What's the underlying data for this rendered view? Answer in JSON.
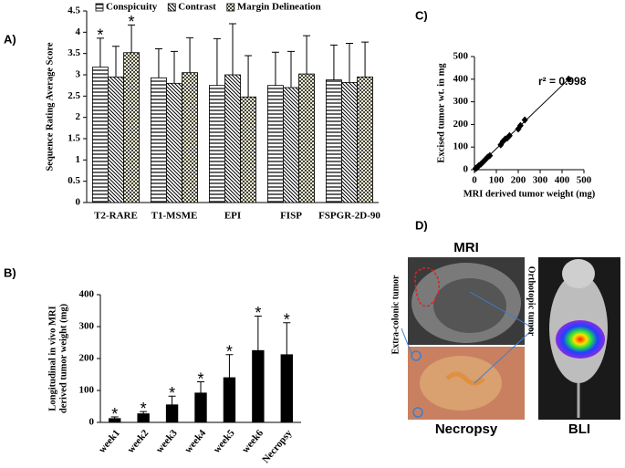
{
  "panel_labels": [
    "A)",
    "B)",
    "C)",
    "D)"
  ],
  "chart_data": [
    {
      "type": "bar",
      "ylabel": "Sequence Rating Average Score",
      "categories": [
        "T2-RARE",
        "T1-MSME",
        "EPI",
        "FISP",
        "FSPGR-2D-90"
      ],
      "ylim": [
        0,
        4.5
      ],
      "yticks": [
        0,
        0.5,
        1,
        1.5,
        2,
        2.5,
        3,
        3.5,
        4,
        4.5
      ],
      "series": [
        {
          "name": "Conspicuity",
          "color": "#000000",
          "pattern": "horizontal",
          "values": [
            3.18,
            2.93,
            2.75,
            2.75,
            2.88
          ],
          "errors": [
            0.68,
            0.68,
            1.1,
            0.78,
            0.82
          ],
          "markers": [
            "*",
            null,
            null,
            null,
            null
          ]
        },
        {
          "name": "Contrast",
          "color": "#000000",
          "pattern": "diagonal",
          "values": [
            2.95,
            2.8,
            3.0,
            2.7,
            2.82
          ],
          "errors": [
            0.72,
            0.75,
            1.2,
            0.85,
            0.92
          ],
          "markers": [
            null,
            null,
            null,
            null,
            null
          ]
        },
        {
          "name": "Margin Delineation",
          "color": "#000000",
          "pattern": "checker",
          "values": [
            3.52,
            3.05,
            2.48,
            3.02,
            2.95
          ],
          "errors": [
            0.65,
            0.82,
            0.97,
            0.9,
            0.82
          ],
          "markers": [
            "*",
            null,
            null,
            null,
            null
          ]
        }
      ]
    },
    {
      "type": "bar",
      "ylabel": [
        "Longitudinal  in vivo MRI",
        "derived  tumor weight (mg)"
      ],
      "categories": [
        "week1",
        "week2",
        "week3",
        "week4",
        "week5",
        "week6",
        "Necropsy"
      ],
      "ylim": [
        0,
        400
      ],
      "yticks": [
        0,
        100,
        200,
        300,
        400
      ],
      "color": "#000000",
      "values": [
        12,
        27,
        55,
        92,
        140,
        225,
        212
      ],
      "errors": [
        5,
        7,
        27,
        35,
        72,
        108,
        100
      ],
      "markers": [
        "*",
        "*",
        "*",
        "*",
        "*",
        "*",
        "*"
      ]
    },
    {
      "type": "scatter",
      "xlabel": "MRI derived tumor  weight (mg)",
      "ylabel": "Excised tumor wt. in mg",
      "annotation": "r² = 0.998",
      "color": "#000000",
      "x": [
        5,
        10,
        15,
        20,
        30,
        40,
        50,
        60,
        70,
        120,
        130,
        140,
        150,
        160,
        200,
        210,
        230,
        430
      ],
      "y": [
        5,
        8,
        12,
        18,
        25,
        35,
        45,
        55,
        62,
        110,
        125,
        135,
        140,
        150,
        180,
        195,
        220,
        400
      ],
      "fit_line": {
        "x": [
          0,
          430
        ],
        "y": [
          0,
          400
        ]
      },
      "xlim": [
        0,
        500
      ],
      "xticks": [
        0,
        100,
        200,
        300,
        400,
        500
      ],
      "ylim": [
        0,
        500
      ],
      "yticks": [
        0,
        100,
        200,
        300,
        400,
        500
      ]
    }
  ],
  "panel_d": {
    "mri": "MRI",
    "necropsy": "Necropsy",
    "bli": "BLI",
    "extra": "Extra-colonic  tumor",
    "ortho": "Orthotopic  tumor"
  }
}
